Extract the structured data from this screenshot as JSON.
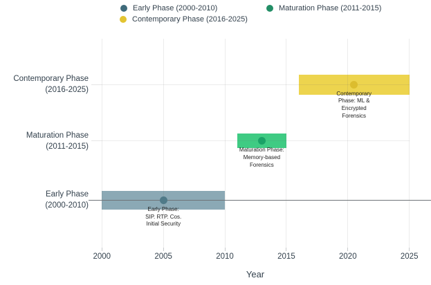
{
  "legend": {
    "items": [
      {
        "label": "Early Phase (2000-2010)",
        "color": "#3f6b7b"
      },
      {
        "label": "Maturation Phase (2011-2015)",
        "color": "#238e66"
      },
      {
        "label": "Contemporary Phase (2016-2025)",
        "color": "#e3c431"
      }
    ]
  },
  "chart_data": {
    "type": "bar",
    "variant": "horizontal-gantt-timeline",
    "title": "",
    "xlabel": "Year",
    "x_ticks": [
      2000,
      2005,
      2010,
      2015,
      2020,
      2025
    ],
    "x_range": [
      2000,
      2025
    ],
    "grid": true,
    "legend_position": "top-center",
    "rows": [
      {
        "name": "Contemporary Phase",
        "axis_label": [
          "Contemporary Phase",
          "(2016-2025)"
        ],
        "start": 2016,
        "end": 2025,
        "marker_year": 2020.5,
        "bar_color": "#edd44e",
        "marker_color": "#dcbd2e",
        "baseline": false,
        "annotation": [
          "Contemporary",
          "Phase: ML &",
          "Encrypted",
          "Forensics"
        ]
      },
      {
        "name": "Maturation Phase",
        "axis_label": [
          "Maturation Phase",
          "(2011-2015)"
        ],
        "start": 2011,
        "end": 2015,
        "marker_year": 2013,
        "bar_color": "#3fcb83",
        "marker_color": "#1aa267",
        "baseline": false,
        "annotation": [
          "Maturation Phase:",
          "Memory-based",
          "Forensics"
        ]
      },
      {
        "name": "Early Phase",
        "axis_label": [
          "Early Phase",
          "(2000-2010)"
        ],
        "start": 2000,
        "end": 2010,
        "marker_year": 2005,
        "bar_color": "#8ba9b5",
        "marker_color": "#4f7a88",
        "baseline": true,
        "annotation": [
          "Early Phase:",
          "SIP. RTP. Cos.",
          "Initial Security"
        ]
      }
    ]
  }
}
